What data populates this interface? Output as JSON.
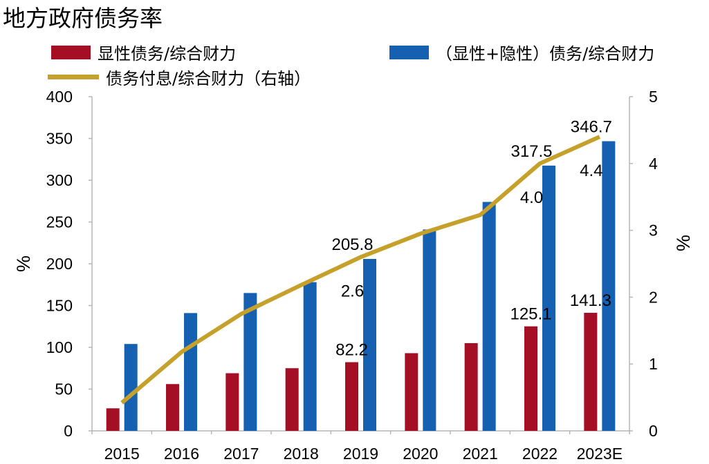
{
  "chart_data": {
    "type": "bar",
    "title": "地方政府债务率",
    "categories": [
      "2015",
      "2016",
      "2017",
      "2018",
      "2019",
      "2020",
      "2021",
      "2022",
      "2023E"
    ],
    "series": [
      {
        "name": "显性债务/综合财力",
        "type": "bar",
        "axis": "left",
        "values": [
          27,
          56,
          69,
          75,
          82.2,
          93,
          105,
          125.1,
          141.3
        ]
      },
      {
        "name": "（显性+隐性）债务/综合财力",
        "type": "bar",
        "axis": "left",
        "values": [
          104,
          141,
          165,
          178,
          205.8,
          241,
          274,
          317.5,
          346.7
        ]
      },
      {
        "name": "债务付息/综合财力（右轴）",
        "type": "line",
        "axis": "right",
        "values": [
          0.42,
          1.18,
          1.75,
          2.18,
          2.6,
          2.95,
          3.23,
          4.0,
          4.4
        ]
      }
    ],
    "data_labels": {
      "显性债务/综合财力": [
        null,
        null,
        null,
        null,
        "82.2",
        null,
        null,
        "125.1",
        "141.3"
      ],
      "（显性+隐性）债务/综合财力": [
        null,
        null,
        null,
        null,
        "205.8",
        null,
        null,
        "317.5",
        "346.7"
      ],
      "债务付息/综合财力（右轴）": [
        null,
        null,
        null,
        null,
        "2.6",
        null,
        null,
        "4.0",
        "4.4"
      ]
    },
    "ylabel": "%",
    "ylabel_right": "%",
    "ylim": [
      0,
      400
    ],
    "ylim_right": [
      0,
      5
    ],
    "yticks": [
      0,
      50,
      100,
      150,
      200,
      250,
      300,
      350,
      400
    ],
    "yticks_right": [
      0,
      1,
      2,
      3,
      4,
      5
    ],
    "grid": false,
    "legend_position": "top"
  },
  "colors": {
    "explicit": "#A50F26",
    "total": "#1660B2",
    "interest": "#C5A12B",
    "axis": "#B5B5B5"
  }
}
